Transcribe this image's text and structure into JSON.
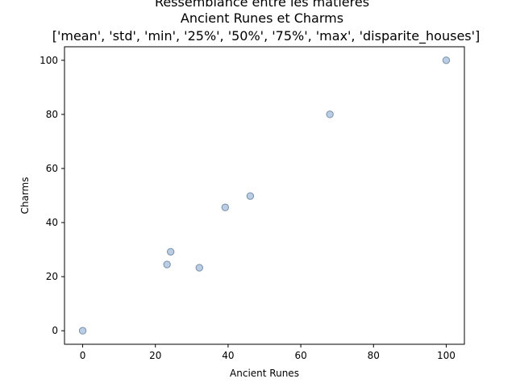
{
  "chart_data": {
    "type": "scatter",
    "title_lines": [
      "Ressemblance entre les matières",
      "Ancient Runes et Charms",
      "['mean', 'std', 'min', '25%', '50%', '75%', 'max', 'disparite_houses']"
    ],
    "xlabel": "Ancient Runes",
    "ylabel": "Charms",
    "xlim": [
      -5,
      105
    ],
    "ylim": [
      -5,
      105
    ],
    "xticks": [
      0,
      20,
      40,
      60,
      80,
      100
    ],
    "yticks": [
      0,
      20,
      40,
      60,
      80,
      100
    ],
    "grid": false,
    "point_fill": "#b0c4de",
    "point_stroke": "#4a6d8c",
    "series": [
      {
        "points": [
          {
            "x": 39.2,
            "y": 45.6
          },
          {
            "x": 23.2,
            "y": 24.5
          },
          {
            "x": 0,
            "y": 0
          },
          {
            "x": 24.2,
            "y": 29.2
          },
          {
            "x": 46.1,
            "y": 49.8
          },
          {
            "x": 68.0,
            "y": 80.0
          },
          {
            "x": 100,
            "y": 100
          },
          {
            "x": 32.1,
            "y": 23.3
          }
        ]
      }
    ]
  }
}
